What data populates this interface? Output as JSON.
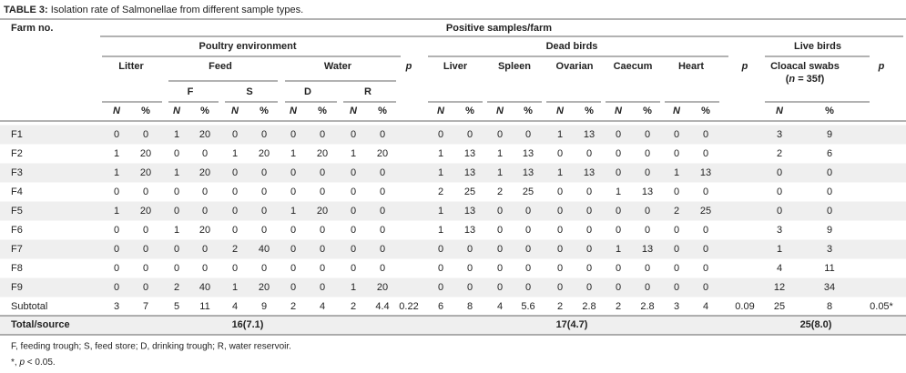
{
  "title_label": "TABLE 3:",
  "title": "Isolation rate of Salmonellae from different sample types.",
  "header": {
    "farm": "Farm no.",
    "positive": "Positive samples/farm",
    "groups": [
      "Poultry environment",
      "Dead birds",
      "Live birds"
    ],
    "samples": [
      "Litter",
      "Feed",
      "Water",
      "p",
      "Liver",
      "Spleen",
      "Ovarian",
      "Caecum",
      "Heart",
      "p",
      "Cloacal swabs",
      "p"
    ],
    "cloacal_n": [
      "(",
      "n",
      " = 35f)"
    ],
    "sources": [
      "F",
      "S",
      "D",
      "R"
    ],
    "units": [
      "N",
      "%"
    ]
  },
  "rows": [
    {
      "label": "F1",
      "cells": [
        0,
        0,
        1,
        20,
        0,
        0,
        0,
        0,
        0,
        0,
        null,
        0,
        0,
        0,
        0,
        1,
        13,
        0,
        0,
        0,
        0,
        null,
        3,
        9,
        null
      ]
    },
    {
      "label": "F2",
      "cells": [
        1,
        20,
        0,
        0,
        1,
        20,
        1,
        20,
        1,
        20,
        null,
        1,
        13,
        1,
        13,
        0,
        0,
        0,
        0,
        0,
        0,
        null,
        2,
        6,
        null
      ]
    },
    {
      "label": "F3",
      "cells": [
        1,
        20,
        1,
        20,
        0,
        0,
        0,
        0,
        0,
        0,
        null,
        1,
        13,
        1,
        13,
        1,
        13,
        0,
        0,
        1,
        13,
        null,
        0,
        0,
        null
      ]
    },
    {
      "label": "F4",
      "cells": [
        0,
        0,
        0,
        0,
        0,
        0,
        0,
        0,
        0,
        0,
        null,
        2,
        25,
        2,
        25,
        0,
        0,
        1,
        13,
        0,
        0,
        null,
        0,
        0,
        null
      ]
    },
    {
      "label": "F5",
      "cells": [
        1,
        20,
        0,
        0,
        0,
        0,
        1,
        20,
        0,
        0,
        null,
        1,
        13,
        0,
        0,
        0,
        0,
        0,
        0,
        2,
        25,
        null,
        0,
        0,
        null
      ]
    },
    {
      "label": "F6",
      "cells": [
        0,
        0,
        1,
        20,
        0,
        0,
        0,
        0,
        0,
        0,
        null,
        1,
        13,
        0,
        0,
        0,
        0,
        0,
        0,
        0,
        0,
        null,
        3,
        9,
        null
      ]
    },
    {
      "label": "F7",
      "cells": [
        0,
        0,
        0,
        0,
        2,
        40,
        0,
        0,
        0,
        0,
        null,
        0,
        0,
        0,
        0,
        0,
        0,
        1,
        13,
        0,
        0,
        null,
        1,
        3,
        null
      ]
    },
    {
      "label": "F8",
      "cells": [
        0,
        0,
        0,
        0,
        0,
        0,
        0,
        0,
        0,
        0,
        null,
        0,
        0,
        0,
        0,
        0,
        0,
        0,
        0,
        0,
        0,
        null,
        4,
        11,
        null
      ]
    },
    {
      "label": "F9",
      "cells": [
        0,
        0,
        2,
        40,
        1,
        20,
        0,
        0,
        1,
        20,
        null,
        0,
        0,
        0,
        0,
        0,
        0,
        0,
        0,
        0,
        0,
        null,
        12,
        34,
        null
      ]
    },
    {
      "label": "Subtotal",
      "cells": [
        3,
        7,
        5,
        11,
        4,
        9,
        2,
        4,
        2,
        4.4,
        0.22,
        6,
        8,
        4,
        5.6,
        2,
        2.8,
        2,
        2.8,
        3,
        4,
        0.09,
        25,
        8,
        "0.05*"
      ]
    }
  ],
  "total": {
    "label": "Total/source",
    "cells": [
      "16(7.1)",
      "17(4.7)",
      "25(8.0)"
    ]
  },
  "footnotes": [
    "F, feeding trough; S, feed store; D, drinking trough; R, water reservoir.",
    [
      "*, ",
      "p",
      " < 0.05."
    ]
  ]
}
